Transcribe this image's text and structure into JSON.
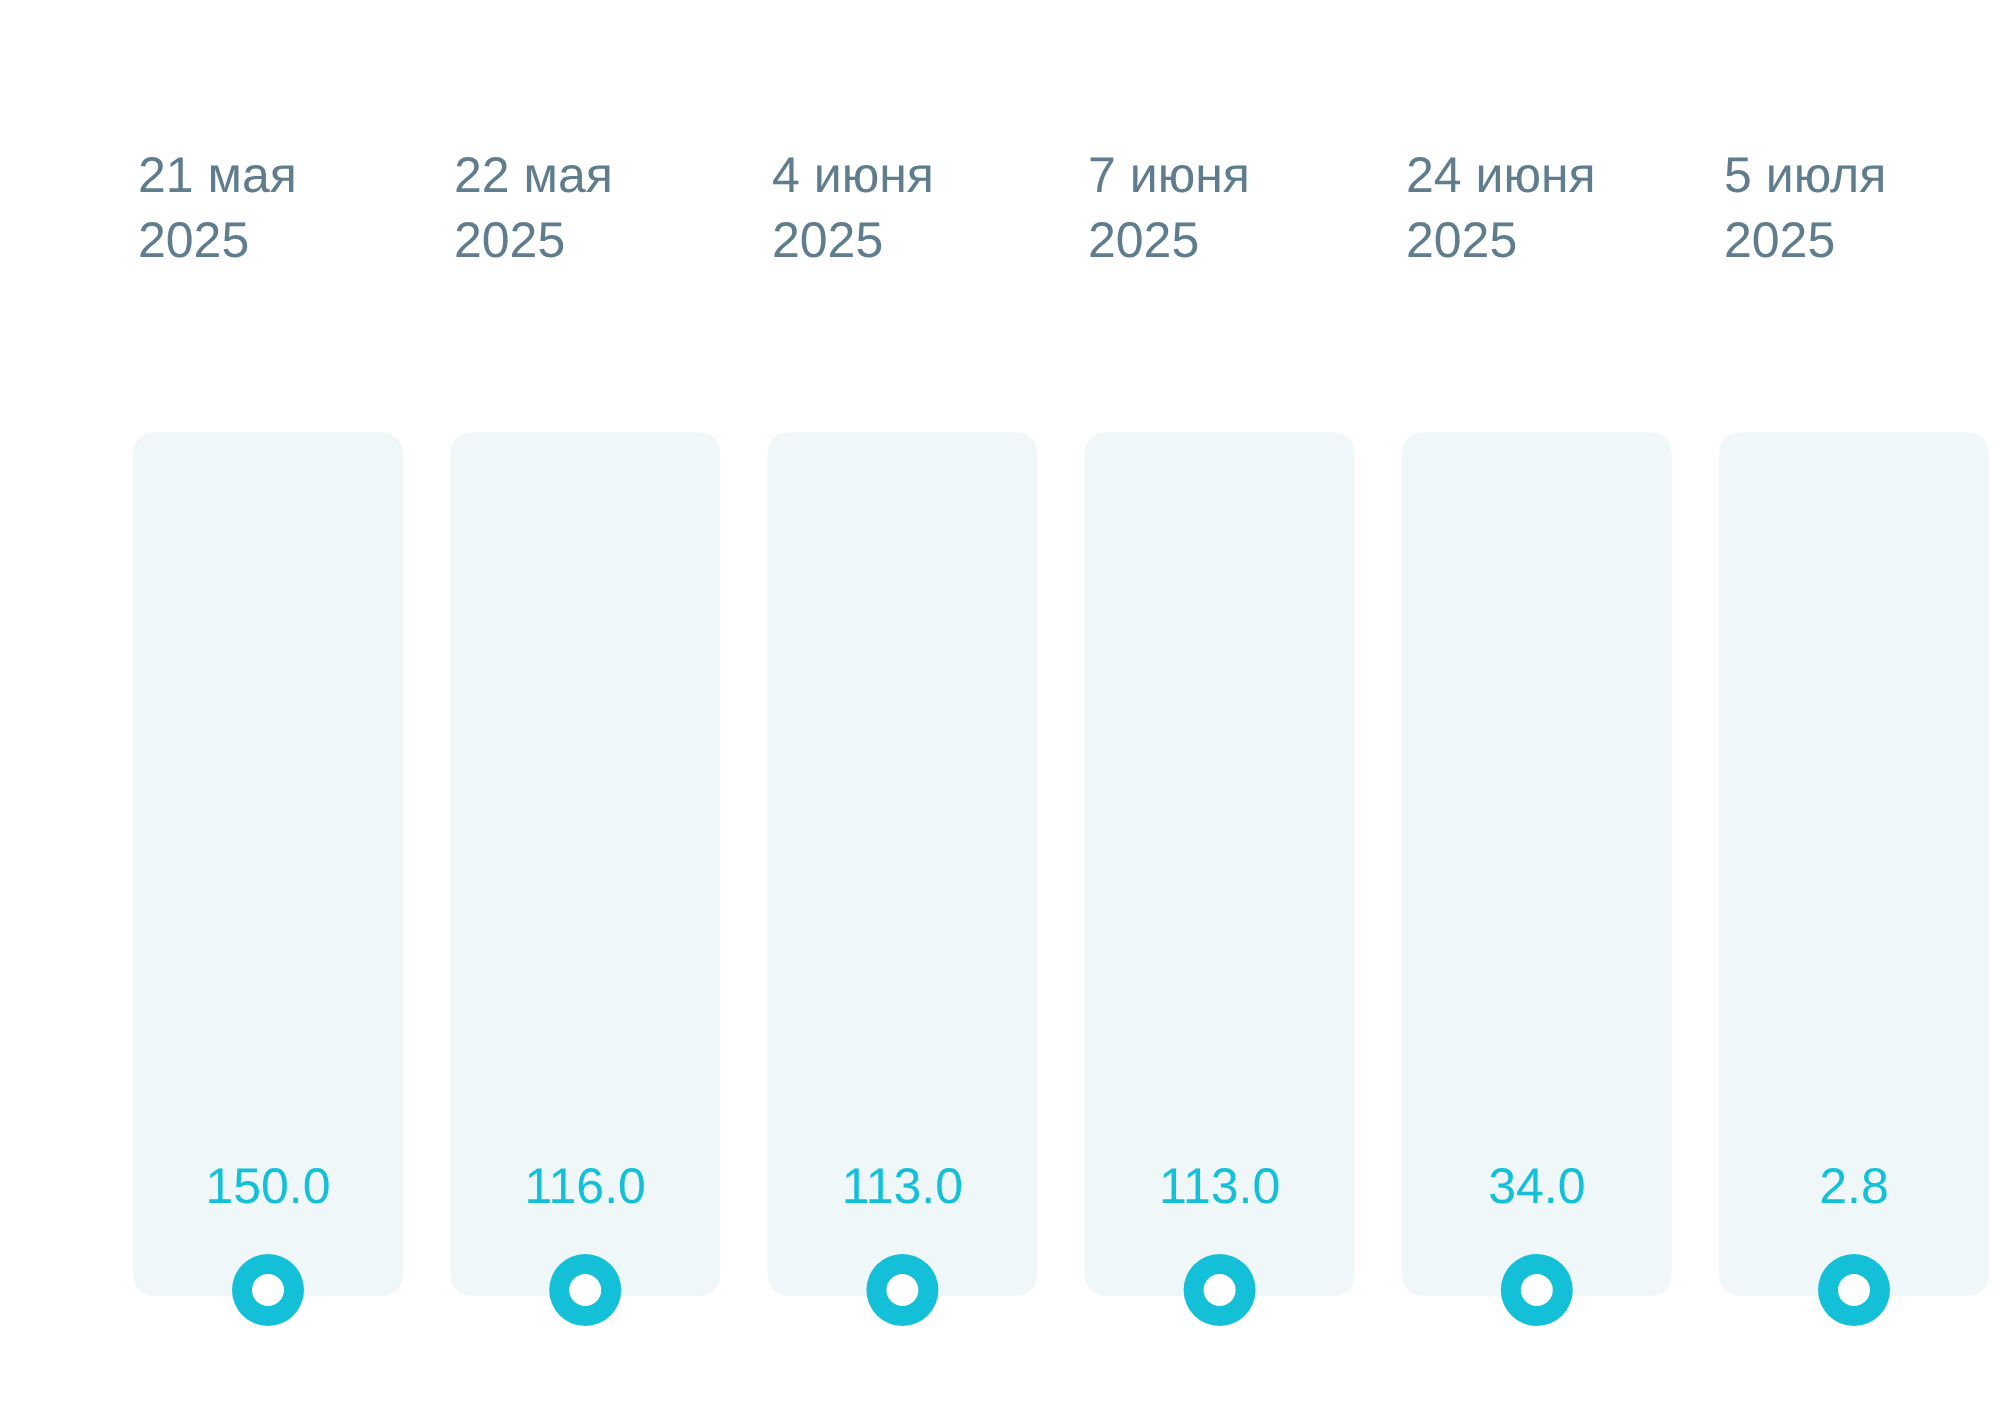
{
  "chart_data": {
    "type": "other",
    "categories": [
      "21 мая 2025",
      "22 мая 2025",
      "4 июня 2025",
      "7 июня 2025",
      "24 июня 2025",
      "5 июля 2025"
    ],
    "values": [
      150.0,
      116.0,
      113.0,
      113.0,
      34.0,
      2.8
    ],
    "value_labels": [
      "150.0",
      "116.0",
      "113.0",
      "113.0",
      "34.0",
      "2.8"
    ]
  }
}
